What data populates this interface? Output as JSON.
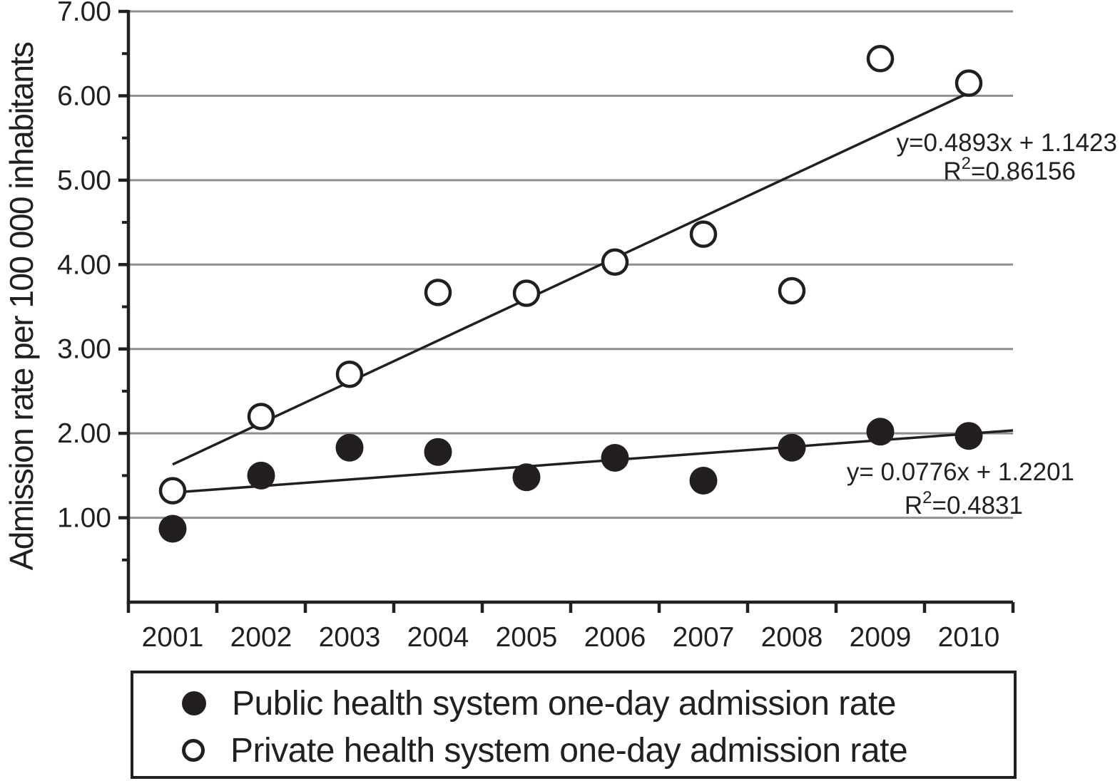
{
  "figure": {
    "y_axis_title": "Admission rate per 100 000 inhabitants",
    "annotations": {
      "private_trendline": {
        "equation": "y=0.4893x + 1.1423",
        "r2_base": "R",
        "r2_sup": "2",
        "r2_rest": "=0.86156"
      },
      "public_trendline": {
        "equation": "y= 0.0776x + 1.2201",
        "r2_base": "R",
        "r2_sup": "2",
        "r2_rest": "=0.4831"
      }
    },
    "legend": {
      "items": [
        {
          "icon": "filled-circle-icon",
          "label": "Public health system one-day admission rate"
        },
        {
          "icon": "open-circle-icon",
          "label": "Private health system one-day admission rate"
        }
      ]
    }
  },
  "chart_data": {
    "type": "scatter",
    "title": "",
    "xlabel": "",
    "ylabel": "Admission rate per 100 000 inhabitants",
    "x": [
      "2001",
      "2002",
      "2003",
      "2004",
      "2005",
      "2006",
      "2007",
      "2008",
      "2009",
      "2010"
    ],
    "series": [
      {
        "name": "Public health system one-day admission rate",
        "marker": "filled-circle",
        "values": [
          0.87,
          1.5,
          1.83,
          1.78,
          1.48,
          1.71,
          1.44,
          1.83,
          2.02,
          1.97
        ],
        "trendline": {
          "slope": 0.0776,
          "intercept": 1.2201,
          "equation": "y= 0.0776x + 1.2201",
          "r_squared": 0.4831
        }
      },
      {
        "name": "Private health system one-day admission rate",
        "marker": "open-circle",
        "values": [
          1.32,
          2.2,
          2.7,
          3.67,
          3.66,
          4.03,
          4.36,
          3.69,
          6.44,
          6.15
        ],
        "trendline": {
          "slope": 0.4893,
          "intercept": 1.1423,
          "equation": "y=0.4893x + 1.1423",
          "r_squared": 0.86156
        }
      }
    ],
    "ylim": [
      0,
      7
    ],
    "yticks": [
      1,
      2,
      3,
      4,
      5,
      6,
      7
    ],
    "ytick_labels": [
      "1.00",
      "2.00",
      "3.00",
      "4.00",
      "5.00",
      "6.00",
      "7.00"
    ],
    "y_minor_tick_step": 0.5,
    "grid": "horizontal-major",
    "legend_position": "bottom",
    "colors": {
      "ink": "#231f20",
      "grid": "#8f8f8f",
      "background": "#ffffff"
    }
  }
}
